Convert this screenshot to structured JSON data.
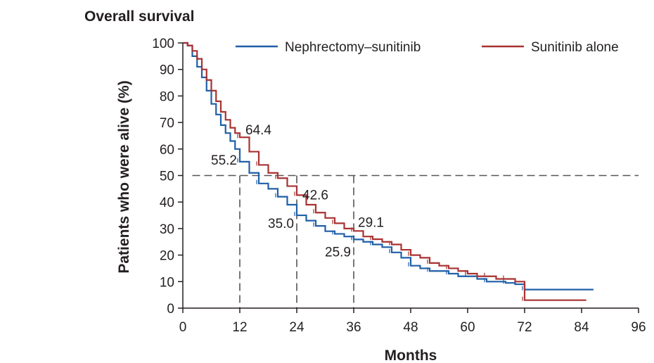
{
  "chart_data": {
    "type": "line",
    "title": "Overall survival",
    "xlabel": "Months",
    "ylabel": "Patients who were alive (%)",
    "xlim": [
      0,
      96
    ],
    "ylim": [
      0,
      100
    ],
    "xticks": [
      0,
      12,
      24,
      36,
      48,
      60,
      72,
      84,
      96
    ],
    "yticks": [
      0,
      10,
      20,
      30,
      40,
      50,
      60,
      70,
      80,
      90,
      100
    ],
    "legend_position": "top-right",
    "reference_line_y": 50,
    "series": [
      {
        "name": "Nephrectomy–sunitinib",
        "color": "#1f5fa8",
        "points": [
          [
            0,
            100
          ],
          [
            1,
            99
          ],
          [
            2,
            95
          ],
          [
            3,
            91
          ],
          [
            4,
            87
          ],
          [
            5,
            82
          ],
          [
            6,
            77
          ],
          [
            7,
            73
          ],
          [
            8,
            69
          ],
          [
            9,
            66
          ],
          [
            10,
            63
          ],
          [
            11,
            60
          ],
          [
            12,
            55.2
          ],
          [
            14,
            51
          ],
          [
            16,
            47
          ],
          [
            18,
            45
          ],
          [
            20,
            42
          ],
          [
            22,
            39
          ],
          [
            24,
            35.0
          ],
          [
            26,
            33
          ],
          [
            28,
            31
          ],
          [
            30,
            29
          ],
          [
            32,
            28
          ],
          [
            34,
            27
          ],
          [
            36,
            25.9
          ],
          [
            38,
            25
          ],
          [
            40,
            24
          ],
          [
            42,
            23
          ],
          [
            44,
            21
          ],
          [
            46,
            19
          ],
          [
            48,
            16
          ],
          [
            50,
            15
          ],
          [
            52,
            14
          ],
          [
            54,
            14
          ],
          [
            56,
            13
          ],
          [
            58,
            12
          ],
          [
            60,
            12
          ],
          [
            62,
            11
          ],
          [
            64,
            10
          ],
          [
            66,
            10
          ],
          [
            68,
            9.5
          ],
          [
            70,
            9
          ],
          [
            72,
            7
          ],
          [
            78,
            7
          ],
          [
            84,
            7
          ],
          [
            86.5,
            7
          ]
        ]
      },
      {
        "name": "Sunitinib alone",
        "color": "#a83232",
        "points": [
          [
            0,
            100
          ],
          [
            1,
            99
          ],
          [
            2,
            97
          ],
          [
            3,
            94
          ],
          [
            4,
            90
          ],
          [
            5,
            86
          ],
          [
            6,
            82
          ],
          [
            7,
            78
          ],
          [
            8,
            74
          ],
          [
            9,
            71
          ],
          [
            10,
            68
          ],
          [
            11,
            66
          ],
          [
            12,
            64.4
          ],
          [
            14,
            59
          ],
          [
            16,
            54
          ],
          [
            18,
            51
          ],
          [
            20,
            49
          ],
          [
            22,
            46
          ],
          [
            24,
            42.6
          ],
          [
            26,
            39
          ],
          [
            28,
            36
          ],
          [
            30,
            34
          ],
          [
            32,
            32
          ],
          [
            34,
            30
          ],
          [
            36,
            29.1
          ],
          [
            38,
            27
          ],
          [
            40,
            26
          ],
          [
            42,
            25
          ],
          [
            44,
            24
          ],
          [
            46,
            22
          ],
          [
            48,
            20
          ],
          [
            50,
            19
          ],
          [
            52,
            17
          ],
          [
            54,
            16
          ],
          [
            56,
            15
          ],
          [
            58,
            14
          ],
          [
            60,
            13
          ],
          [
            62,
            12
          ],
          [
            64,
            12
          ],
          [
            66,
            11
          ],
          [
            68,
            11
          ],
          [
            70,
            10
          ],
          [
            72,
            3
          ],
          [
            78,
            3
          ],
          [
            84,
            3
          ],
          [
            85,
            3
          ]
        ]
      }
    ],
    "annotations": [
      {
        "text": "64.4",
        "x": 12,
        "y": 64.4
      },
      {
        "text": "55.2",
        "x": 12,
        "y": 55.2
      },
      {
        "text": "42.6",
        "x": 24,
        "y": 42.6
      },
      {
        "text": "35.0",
        "x": 24,
        "y": 35.0
      },
      {
        "text": "29.1",
        "x": 36,
        "y": 29.1
      },
      {
        "text": "25.9",
        "x": 36,
        "y": 25.9
      }
    ],
    "dropdowns_x": [
      12,
      24,
      36
    ]
  }
}
